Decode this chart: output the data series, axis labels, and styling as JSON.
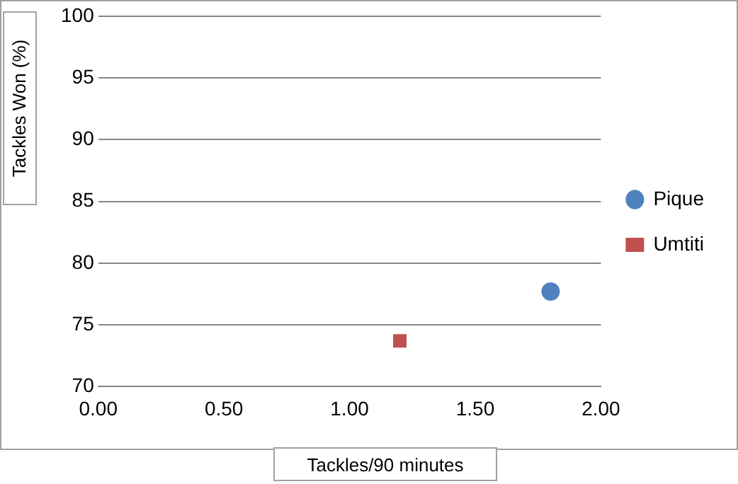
{
  "chart_data": {
    "type": "scatter",
    "xlabel": "Tackles/90 minutes",
    "ylabel": "Tackles Won (%)",
    "series": [
      {
        "name": "Pique",
        "color": "#4f81bd",
        "marker": "circle",
        "x": [
          1.8
        ],
        "values": [
          77.7
        ]
      },
      {
        "name": "Umtiti",
        "color": "#c0504d",
        "marker": "square",
        "x": [
          1.2
        ],
        "values": [
          73.7
        ]
      }
    ],
    "xlim": [
      0,
      2
    ],
    "xticks": [
      {
        "value": 0,
        "label": "0.00"
      },
      {
        "value": 0.5,
        "label": "0.50"
      },
      {
        "value": 1,
        "label": "1.00"
      },
      {
        "value": 1.5,
        "label": "1.50"
      },
      {
        "value": 2,
        "label": "2.00"
      }
    ],
    "ylim": [
      70,
      100
    ],
    "yticks": [
      70,
      75,
      80,
      85,
      90,
      95,
      100
    ],
    "grid": "y",
    "legend": "right"
  }
}
